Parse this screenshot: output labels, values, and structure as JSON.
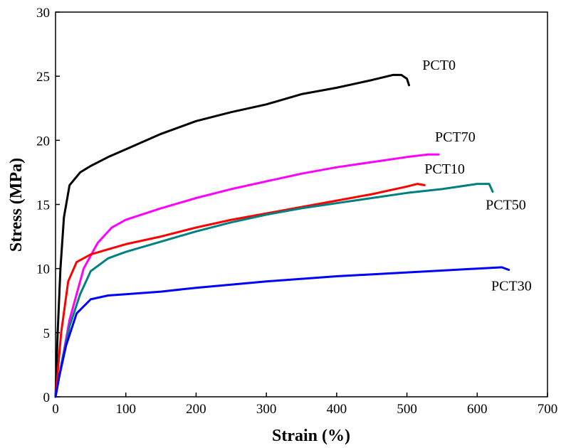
{
  "chart_data": {
    "type": "line",
    "xlabel": "Strain (%)",
    "ylabel": "Stress (MPa)",
    "xlim": [
      0,
      700
    ],
    "ylim": [
      0,
      30
    ],
    "xticks": [
      0,
      100,
      200,
      300,
      400,
      500,
      600,
      700
    ],
    "yticks": [
      0,
      5,
      10,
      15,
      20,
      25,
      30
    ],
    "grid": false,
    "legend": "none (series labeled inline next to curve ends)",
    "series": [
      {
        "name": "PCT0",
        "color": "#000000",
        "points": [
          [
            0,
            0
          ],
          [
            3,
            5
          ],
          [
            7,
            10
          ],
          [
            12,
            14
          ],
          [
            20,
            16.5
          ],
          [
            35,
            17.5
          ],
          [
            50,
            18
          ],
          [
            75,
            18.7
          ],
          [
            100,
            19.3
          ],
          [
            150,
            20.5
          ],
          [
            200,
            21.5
          ],
          [
            250,
            22.2
          ],
          [
            300,
            22.8
          ],
          [
            350,
            23.6
          ],
          [
            400,
            24.1
          ],
          [
            450,
            24.7
          ],
          [
            480,
            25.1
          ],
          [
            492,
            25.1
          ],
          [
            500,
            24.8
          ],
          [
            503,
            24.3
          ]
        ]
      },
      {
        "name": "PCT70",
        "color": "#ff00ff",
        "points": [
          [
            0,
            0
          ],
          [
            10,
            3
          ],
          [
            20,
            6
          ],
          [
            40,
            10
          ],
          [
            60,
            12
          ],
          [
            80,
            13.2
          ],
          [
            100,
            13.8
          ],
          [
            150,
            14.7
          ],
          [
            200,
            15.5
          ],
          [
            250,
            16.2
          ],
          [
            300,
            16.8
          ],
          [
            350,
            17.4
          ],
          [
            400,
            17.9
          ],
          [
            450,
            18.3
          ],
          [
            500,
            18.7
          ],
          [
            530,
            18.9
          ],
          [
            545,
            18.9
          ]
        ]
      },
      {
        "name": "PCT10",
        "color": "#ff0000",
        "points": [
          [
            0,
            0
          ],
          [
            8,
            5
          ],
          [
            18,
            9
          ],
          [
            30,
            10.5
          ],
          [
            50,
            11.1
          ],
          [
            75,
            11.5
          ],
          [
            100,
            11.9
          ],
          [
            150,
            12.5
          ],
          [
            200,
            13.2
          ],
          [
            250,
            13.8
          ],
          [
            300,
            14.3
          ],
          [
            350,
            14.8
          ],
          [
            400,
            15.3
          ],
          [
            450,
            15.8
          ],
          [
            500,
            16.4
          ],
          [
            515,
            16.6
          ],
          [
            525,
            16.5
          ]
        ]
      },
      {
        "name": "PCT50",
        "color": "#008080",
        "points": [
          [
            0,
            0
          ],
          [
            10,
            3
          ],
          [
            20,
            5.5
          ],
          [
            35,
            8
          ],
          [
            50,
            9.8
          ],
          [
            75,
            10.8
          ],
          [
            100,
            11.3
          ],
          [
            150,
            12.1
          ],
          [
            200,
            12.9
          ],
          [
            250,
            13.6
          ],
          [
            300,
            14.2
          ],
          [
            350,
            14.7
          ],
          [
            400,
            15.1
          ],
          [
            450,
            15.5
          ],
          [
            500,
            15.9
          ],
          [
            550,
            16.2
          ],
          [
            600,
            16.6
          ],
          [
            617,
            16.6
          ],
          [
            622,
            16
          ]
        ]
      },
      {
        "name": "PCT30",
        "color": "#0000ff",
        "points": [
          [
            0,
            0
          ],
          [
            5,
            1.5
          ],
          [
            15,
            4
          ],
          [
            30,
            6.5
          ],
          [
            50,
            7.6
          ],
          [
            75,
            7.9
          ],
          [
            100,
            8
          ],
          [
            150,
            8.2
          ],
          [
            200,
            8.5
          ],
          [
            300,
            9
          ],
          [
            400,
            9.4
          ],
          [
            500,
            9.7
          ],
          [
            600,
            10
          ],
          [
            635,
            10.1
          ],
          [
            645,
            9.9
          ]
        ]
      }
    ],
    "annotations": [
      "PCT0",
      "PCT70",
      "PCT10",
      "PCT50",
      "PCT30"
    ]
  }
}
